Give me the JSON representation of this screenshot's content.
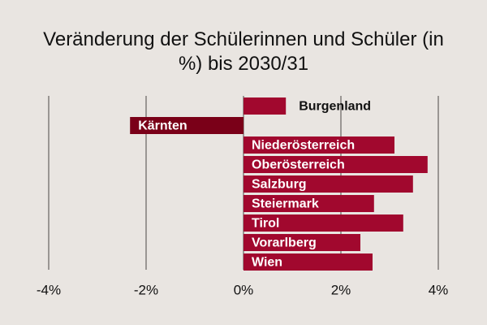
{
  "chart_data": {
    "type": "hbar",
    "title": "Veränderung der Schülerinnen und Schüler (in %) bis 2030/31",
    "categories": [
      "Burgenland",
      "Kärnten",
      "Niederösterreich",
      "Oberösterreich",
      "Salzburg",
      "Steiermark",
      "Tirol",
      "Vorarlberg",
      "Wien"
    ],
    "values": [
      0.87,
      -2.33,
      3.1,
      3.78,
      3.48,
      2.68,
      3.28,
      2.4,
      2.65
    ],
    "colors": [
      "#a1082e",
      "#7a0018",
      "#a1082e",
      "#a1082e",
      "#a1082e",
      "#a1082e",
      "#a1082e",
      "#a1082e",
      "#a1082e"
    ],
    "xlim": [
      -4,
      4
    ],
    "xticks": [
      {
        "value": -4,
        "label": "-4%"
      },
      {
        "value": -2,
        "label": "-2%"
      },
      {
        "value": 0,
        "label": "0%"
      },
      {
        "value": 2,
        "label": "2%"
      },
      {
        "value": 4,
        "label": "4%"
      }
    ],
    "grid": true
  }
}
